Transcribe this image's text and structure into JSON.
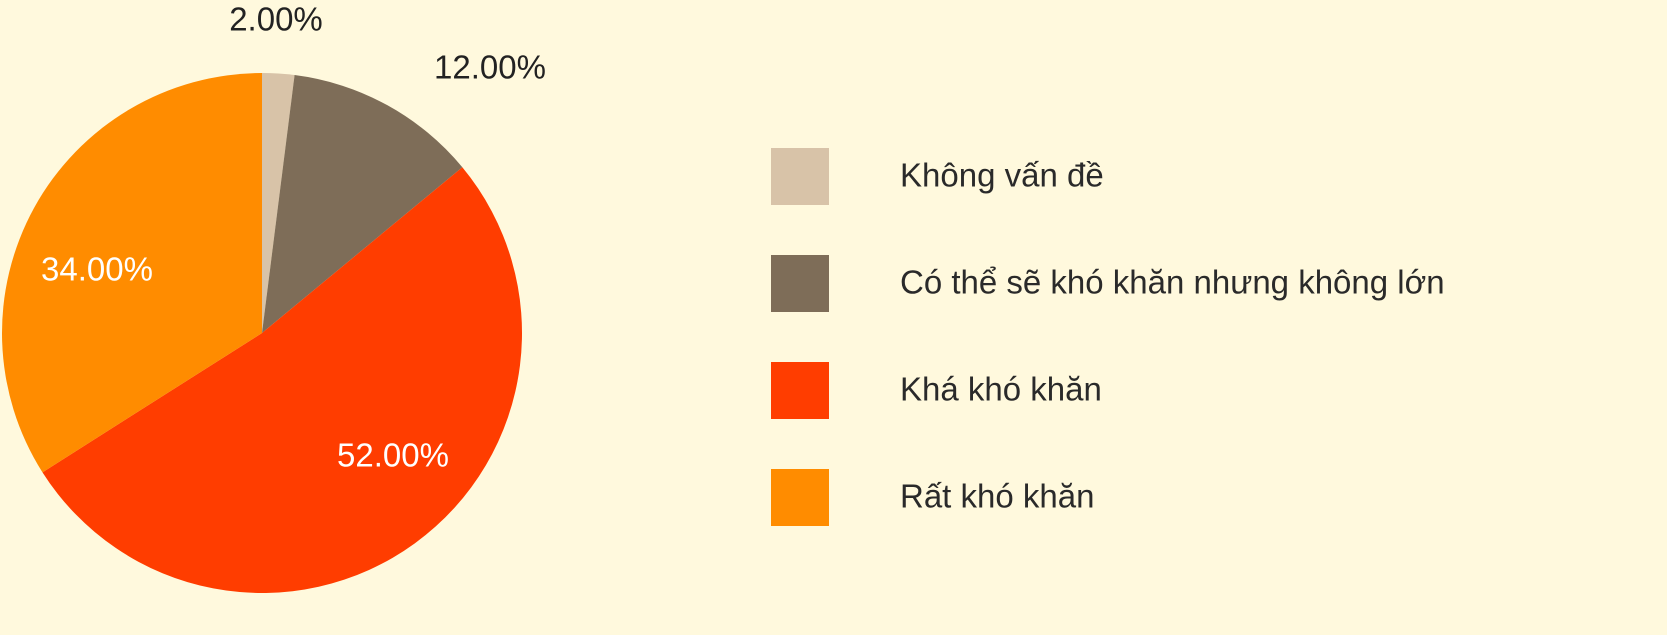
{
  "chart_data": {
    "type": "pie",
    "categories": [
      "Không vấn đề",
      "Có thể sẽ khó khăn nhưng không lớn",
      "Khá khó khăn",
      "Rất khó khăn"
    ],
    "values": [
      2,
      12,
      52,
      34
    ],
    "value_labels": [
      "2.00%",
      "12.00%",
      "52.00%",
      "34.00%"
    ],
    "colors": [
      "#d8c3a8",
      "#7e6d58",
      "#ff3d00",
      "#ff8c00"
    ]
  }
}
